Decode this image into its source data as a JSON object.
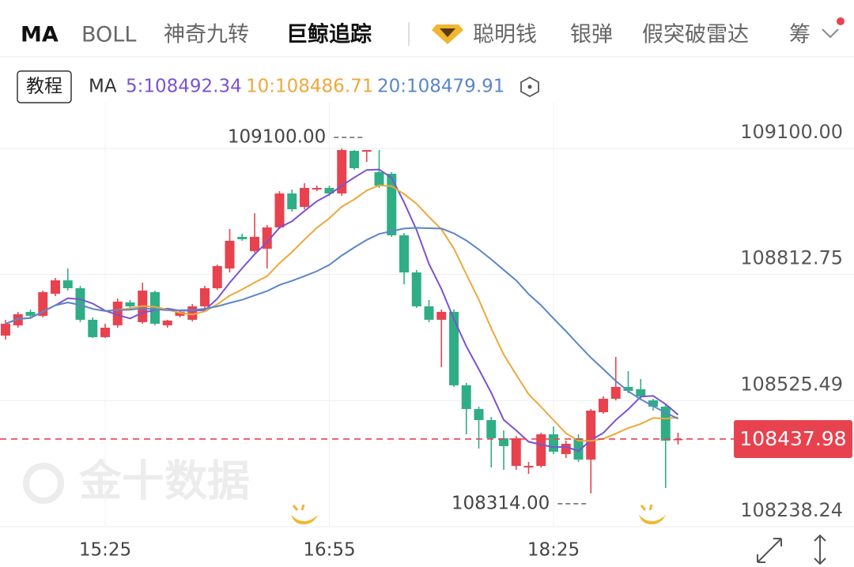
{
  "tabs": [
    "MA",
    "BOLL",
    "神奇九转",
    "巨鲸追踪",
    "聪明钱",
    "银弹",
    "假突破雷达",
    "筹"
  ],
  "tutorial_button": "教程",
  "watermark": "金十数据",
  "chart_data": {
    "type": "candlestick",
    "ma_title": "MA",
    "ma": [
      {
        "period": 5,
        "label": "5:108492.34",
        "color": "#7b52d3"
      },
      {
        "period": 10,
        "label": "10:108486.71",
        "color": "#eea83a"
      },
      {
        "period": 20,
        "label": "20:108479.91",
        "color": "#5b86c8"
      }
    ],
    "categories": [
      null,
      null,
      null,
      null,
      null,
      null,
      null,
      null,
      "15:25",
      null,
      null,
      null,
      null,
      null,
      null,
      null,
      null,
      null,
      null,
      null,
      null,
      null,
      null,
      null,
      null,
      null,
      "16:55",
      null,
      null,
      null,
      null,
      null,
      null,
      null,
      null,
      null,
      null,
      null,
      null,
      null,
      null,
      null,
      null,
      null,
      "18:25",
      null,
      null,
      null,
      null,
      null,
      null,
      null,
      null,
      null,
      null
    ],
    "open": [
      108673.7,
      108697.1,
      108727.7,
      108718.7,
      108769.0,
      108799.6,
      108781.6,
      108709.7,
      108670.1,
      108697.1,
      108749.3,
      108704.3,
      108772.6,
      108697.1,
      108718.7,
      108709.7,
      108740.3,
      108781.6,
      108826.6,
      108898.6,
      108866.2,
      108871.6,
      108920.1,
      108997.5,
      108966.9,
      109006.5,
      109010.1,
      108997.5,
      109094.6,
      109092.8,
      109046.0,
      109042.4,
      108902.2,
      108817.6,
      108740.3,
      108709.7,
      108727.7,
      108560.4,
      108506.4,
      108481.2,
      108439.8,
      108376.8,
      108373.2,
      108376.8,
      108448.8,
      108403.8,
      108439.8,
      108391.2,
      108499.2,
      108529.8,
      108556.8,
      108551.4,
      108526.2,
      108511.8,
      108436.2
    ],
    "high": [
      108709.7,
      108727.7,
      108733.1,
      108776.2,
      108805.0,
      108826.6,
      108787.0,
      108715.1,
      108700.7,
      108758.3,
      108754.7,
      108794.2,
      108776.2,
      108709.7,
      108733.1,
      108745.7,
      108787.0,
      108835.6,
      108916.5,
      108905.8,
      108952.5,
      108925.5,
      109002.9,
      109006.5,
      109020.9,
      109015.5,
      109015.5,
      109100.0,
      109096.4,
      109096.4,
      109096.4,
      109046.0,
      108907.6,
      108823.0,
      108754.7,
      108733.1,
      108733.1,
      108565.8,
      108511.8,
      108488.4,
      108457.8,
      108445.2,
      108385.8,
      108452.4,
      108466.8,
      108434.4,
      108448.8,
      108506.4,
      108535.2,
      108625.1,
      108592.8,
      108574.8,
      108529.8,
      108517.2,
      108452.4
    ],
    "low": [
      108664.7,
      108691.7,
      108715.1,
      108715.1,
      108763.6,
      108776.2,
      108704.3,
      108668.3,
      108668.3,
      108691.7,
      108736.7,
      108700.7,
      108697.1,
      108691.7,
      108715.1,
      108706.1,
      108736.7,
      108778.0,
      108817.6,
      108889.6,
      108862.6,
      108826.6,
      108916.5,
      108956.1,
      108961.5,
      109002.9,
      108992.1,
      108992.1,
      109051.4,
      109069.4,
      109010.1,
      108898.6,
      108790.6,
      108736.7,
      108704.3,
      108601.8,
      108556.8,
      108448.8,
      108416.4,
      108373.2,
      108367.8,
      108367.8,
      108358.8,
      108373.2,
      108403.8,
      108394.8,
      108385.8,
      108314.0,
      108495.6,
      108526.2,
      108542.4,
      108529.8,
      108502.8,
      108326.4,
      108425.4
    ],
    "close": [
      108700.7,
      108722.3,
      108718.7,
      108772.6,
      108799.6,
      108781.6,
      108709.7,
      108670.1,
      108691.7,
      108751.1,
      108740.3,
      108776.2,
      108700.7,
      108707.9,
      108727.7,
      108740.3,
      108781.6,
      108832.0,
      108889.6,
      108893.2,
      108898.6,
      108920.1,
      108997.5,
      108961.5,
      109010.1,
      109010.1,
      108997.5,
      109096.4,
      109055.0,
      109096.4,
      109015.5,
      108902.2,
      108817.6,
      108740.3,
      108709.7,
      108727.7,
      108560.4,
      108506.4,
      108481.2,
      108439.8,
      108421.8,
      108439.8,
      108376.8,
      108448.8,
      108409.2,
      108427.2,
      108391.2,
      108502.8,
      108529.8,
      108556.8,
      108547.8,
      108535.2,
      108511.8,
      108434.4,
      108437.98
    ],
    "up_color": "#e8424f",
    "down_color": "#2fae86",
    "ylim": [
      108238.24,
      109186.36
    ],
    "yticks": [
      {
        "value": 108238.24,
        "label": "108238.24"
      },
      {
        "value": 108525.49,
        "label": "108525.49"
      },
      {
        "value": 108812.75,
        "label": "108812.75"
      },
      {
        "value": 109100.0,
        "label": "109100.00"
      }
    ],
    "high_annotation": {
      "value": 109100.0,
      "label": "109100.00"
    },
    "low_annotation": {
      "value": 108314.0,
      "label": "108314.00"
    },
    "last_price": {
      "value": 108437.98,
      "label": "108437.98"
    },
    "grid": true
  }
}
